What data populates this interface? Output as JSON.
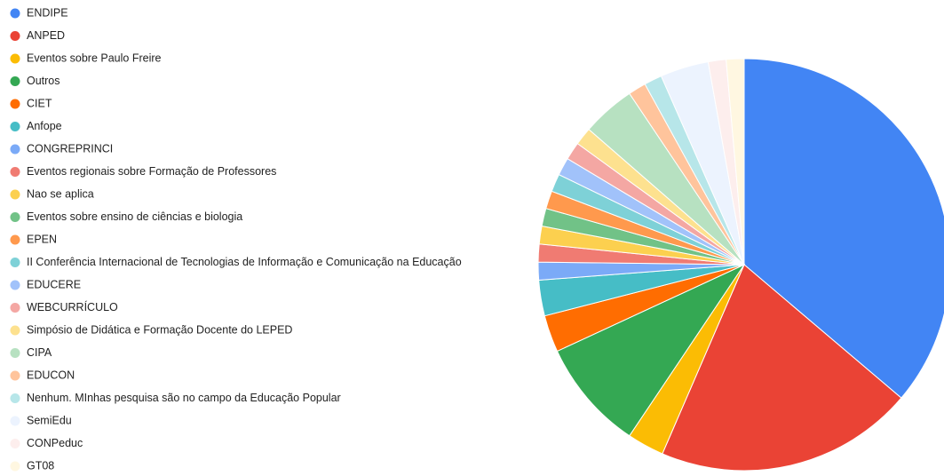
{
  "chart_data": {
    "type": "pie",
    "categories": [
      "ENDIPE",
      "ANPED",
      "Eventos sobre Paulo Freire",
      "Outros",
      "CIET",
      "Anfope",
      "CONGREPRINCI",
      "Eventos regionais sobre Formação de Professores",
      "Nao se aplica",
      "Eventos sobre ensino de ciências e biologia",
      "EPEN",
      "II Conferência Internacional de Tecnologias de Informação e Comunicação na Educação",
      "EDUCERE",
      "WEBCURRÍCULO",
      "Simpósio de Didática e Formação Docente do LEPED",
      "CIPA",
      "EDUCON",
      "Nenhum. MInhas pesquisa são no campo da Educação Popular",
      "SemiEdu",
      "CONPeduc",
      "GT08"
    ],
    "values": [
      36.2,
      20.3,
      2.9,
      8.7,
      2.9,
      2.8,
      1.4,
      1.4,
      1.4,
      1.4,
      1.4,
      1.4,
      1.4,
      1.4,
      1.4,
      4.2,
      1.4,
      1.4,
      3.8,
      1.4,
      1.4
    ],
    "colors": [
      "#4285f4",
      "#ea4335",
      "#fbbc04",
      "#34a853",
      "#ff6d01",
      "#46bdc6",
      "#7baaf7",
      "#f07b72",
      "#fcd04f",
      "#71c287",
      "#ff994d",
      "#7ed1d7",
      "#a1c2fa",
      "#f4a7a3",
      "#fde18f",
      "#b7e1c1",
      "#ffc49c",
      "#b7e6e9",
      "#ecf3fe",
      "#fdeeed",
      "#fff7e1"
    ],
    "legend": "left"
  }
}
